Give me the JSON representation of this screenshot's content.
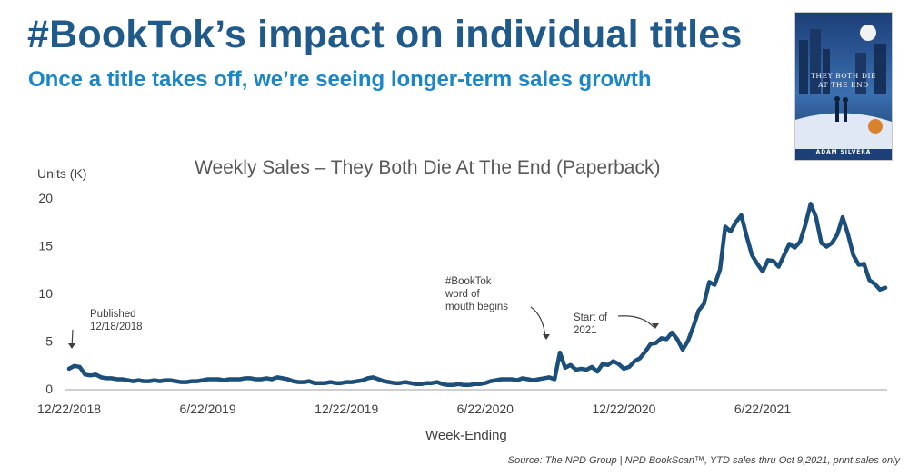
{
  "header": {
    "title": "#BookTok’s impact on individual titles",
    "subtitle": "Once a title takes off, we’re seeing longer-term sales growth"
  },
  "book_cover": {
    "title_lines": [
      "THEY BOTH DIE",
      "AT THE END"
    ],
    "author": "ADAM SILVERA",
    "colors": {
      "background": "#1d3f78",
      "sky": "#3a6fb0",
      "moon": "#f2f2f2",
      "badge": "#d9822b"
    }
  },
  "footer": {
    "source": "Source: The NPD Group | NPD BookScan™, YTD sales thru Oct 9,2021, print sales only"
  },
  "chart_data": {
    "type": "line",
    "title": "Weekly Sales – They Both Die At The End (Paperback)",
    "ylabel": "Units (K)",
    "xlabel": "Week-Ending",
    "ylim": [
      0,
      20
    ],
    "yticks": [
      0,
      5,
      10,
      15,
      20
    ],
    "xticks": [
      {
        "label": "12/22/2018",
        "week": 0
      },
      {
        "label": "6/22/2019",
        "week": 26
      },
      {
        "label": "12/22/2019",
        "week": 52
      },
      {
        "label": "6/22/2020",
        "week": 78
      },
      {
        "label": "12/22/2020",
        "week": 104
      },
      {
        "label": "6/22/2021",
        "week": 130
      }
    ],
    "grid": false,
    "legend": "none",
    "line_color": "#1b4f7a",
    "series": [
      {
        "values": [
          2.1,
          2.4,
          2.3,
          1.5,
          1.4,
          1.5,
          1.2,
          1.1,
          1.1,
          1.0,
          1.0,
          0.9,
          0.8,
          0.9,
          0.8,
          0.8,
          0.9,
          0.8,
          0.9,
          0.9,
          0.8,
          0.7,
          0.7,
          0.8,
          0.8,
          0.9,
          1.0,
          1.0,
          1.0,
          0.9,
          1.0,
          1.0,
          1.0,
          1.1,
          1.1,
          1.0,
          1.0,
          1.1,
          1.0,
          1.2,
          1.1,
          1.0,
          0.8,
          0.7,
          0.7,
          0.8,
          0.6,
          0.6,
          0.6,
          0.7,
          0.6,
          0.6,
          0.7,
          0.7,
          0.8,
          0.9,
          1.1,
          1.2,
          1.0,
          0.8,
          0.7,
          0.6,
          0.6,
          0.7,
          0.6,
          0.5,
          0.5,
          0.6,
          0.6,
          0.7,
          0.5,
          0.4,
          0.4,
          0.5,
          0.4,
          0.4,
          0.5,
          0.5,
          0.6,
          0.8,
          0.9,
          1.0,
          1.0,
          1.0,
          0.9,
          1.1,
          1.0,
          0.9,
          1.0,
          1.1,
          1.2,
          1.0,
          3.8,
          2.2,
          2.5,
          2.0,
          2.1,
          2.0,
          2.3,
          1.8,
          2.6,
          2.5,
          2.9,
          2.6,
          2.1,
          2.3,
          2.9,
          3.2,
          3.9,
          4.7,
          4.8,
          5.3,
          5.2,
          5.9,
          5.2,
          4.1,
          5.0,
          6.5,
          8.2,
          8.9,
          11.2,
          10.9,
          12.5,
          17.0,
          16.5,
          17.5,
          18.2,
          16.0,
          14.0,
          13.1,
          12.3,
          13.5,
          13.4,
          12.8,
          14.0,
          15.2,
          14.8,
          15.4,
          17.2,
          19.4,
          18.0,
          15.3,
          14.9,
          15.3,
          16.2,
          18.0,
          16.2,
          14.0,
          13.0,
          13.1,
          11.4,
          11.0,
          10.4,
          10.6
        ]
      }
    ],
    "annotations": [
      {
        "lines": [
          "Published",
          "12/18/2018"
        ],
        "week": 0
      },
      {
        "lines": [
          "#BookTok",
          "word of",
          "mouth begins"
        ],
        "week": 90
      },
      {
        "lines": [
          "Start of",
          "2021"
        ],
        "week": 105
      }
    ]
  }
}
